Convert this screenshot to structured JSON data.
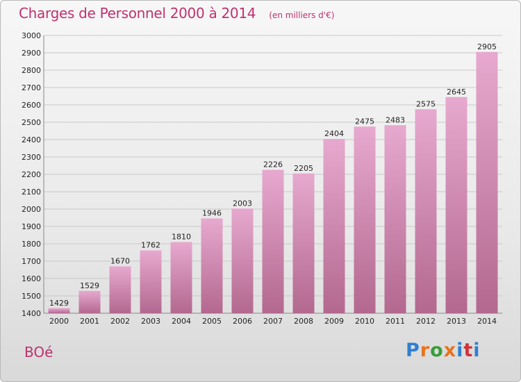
{
  "title": "Charges de Personnel 2000 à 2014",
  "subtitle": "(en milliers d'€)",
  "commune": "BOé",
  "brand": {
    "text": "Proxiti",
    "letter_colors": [
      "#2f7fd0",
      "#e8731c",
      "#3a9c3a",
      "#e8731c",
      "#2f7fd0",
      "#d0313a",
      "#2f7fd0"
    ]
  },
  "colors": {
    "bar_top": "#e7a9cf",
    "bar_bottom": "#b3688f",
    "accent": "#c0306f"
  },
  "chart_data": {
    "type": "bar",
    "categories": [
      "2000",
      "2001",
      "2002",
      "2003",
      "2004",
      "2005",
      "2006",
      "2007",
      "2008",
      "2009",
      "2010",
      "2011",
      "2012",
      "2013",
      "2014"
    ],
    "values": [
      1429,
      1529,
      1670,
      1762,
      1810,
      1946,
      2003,
      2226,
      2205,
      2404,
      2475,
      2483,
      2575,
      2645,
      2905
    ],
    "yticks": [
      1400,
      1500,
      1600,
      1700,
      1800,
      1900,
      2000,
      2100,
      2200,
      2300,
      2400,
      2500,
      2600,
      2700,
      2800,
      2900,
      3000
    ],
    "ylim": [
      1400,
      3000
    ],
    "grid": true,
    "xlabel": "",
    "ylabel": ""
  }
}
